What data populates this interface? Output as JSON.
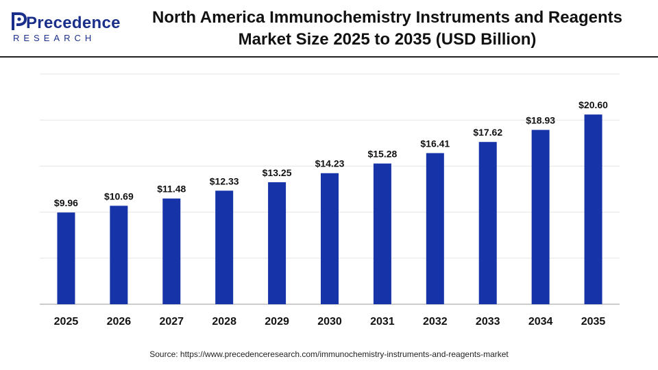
{
  "brand": {
    "name": "Precedence",
    "tagline": "RESEARCH",
    "color": "#1a2f8a"
  },
  "title": {
    "line1": "North America Immunochemistry Instruments and Reagents",
    "line2": "Market Size 2025 to 2035 (USD Billion)"
  },
  "source": "Source: https://www.precedenceresearch.com/immunochemistry-instruments-and-reagents-market",
  "chart_data": {
    "type": "bar",
    "categories": [
      "2025",
      "2026",
      "2027",
      "2028",
      "2029",
      "2030",
      "2031",
      "2032",
      "2033",
      "2034",
      "2035"
    ],
    "values": [
      9.96,
      10.69,
      11.48,
      12.33,
      13.25,
      14.23,
      15.28,
      16.41,
      17.62,
      18.93,
      20.6
    ],
    "data_labels": [
      "$9.96",
      "$10.69",
      "$11.48",
      "$12.33",
      "$13.25",
      "$14.23",
      "$15.28",
      "$16.41",
      "$17.62",
      "$18.93",
      "$20.60"
    ],
    "ylim": [
      0,
      25
    ],
    "grid": true,
    "bar_color": "#1634a8",
    "grid_color": "#e4e4e4",
    "axis_color": "#9a9a9a"
  }
}
